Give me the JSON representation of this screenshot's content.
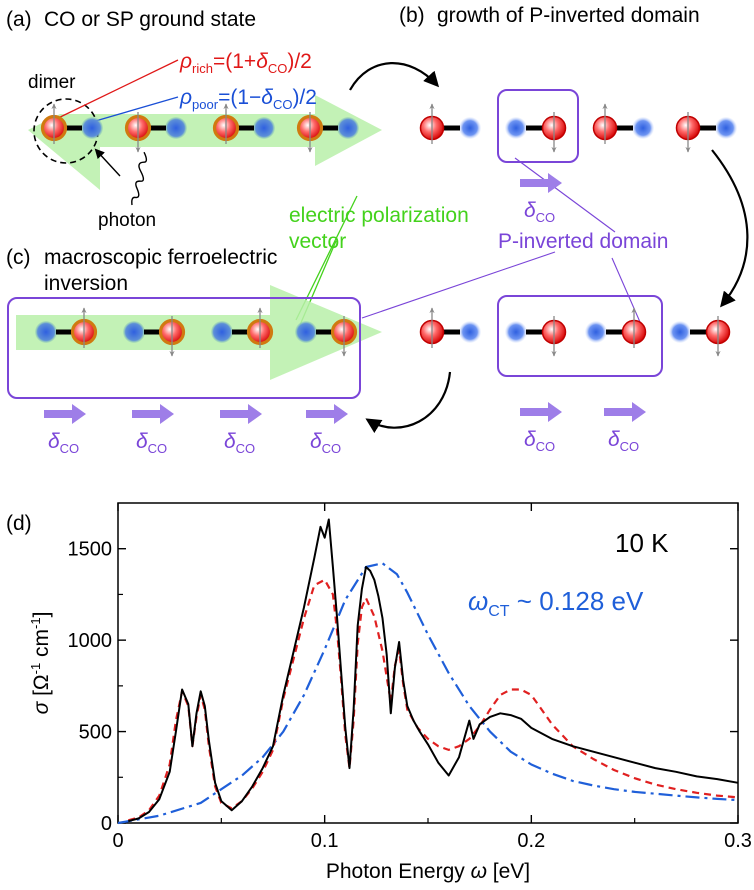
{
  "panels": {
    "a": {
      "tag": "(a)",
      "title": "CO or SP ground state",
      "dimer": "dimer",
      "photon": "photon",
      "rho_rich": "ρ",
      "rho_rich_sub": "rich",
      "rho_rich_eq": "=(1+",
      "rho_rich_delta": "δ",
      "rho_rich_delta_sub": "CO",
      "rho_rich_tail": ")/2",
      "rho_poor": "ρ",
      "rho_poor_sub": "poor",
      "rho_poor_eq": "=(1−",
      "rho_poor_delta": "δ",
      "rho_poor_delta_sub": "CO",
      "rho_poor_tail": ")/2"
    },
    "b": {
      "tag": "(b)",
      "title": "growth of P-inverted domain"
    },
    "c": {
      "tag": "(c)",
      "title_line1": "macroscopic ferroelectric",
      "title_line2": "inversion"
    },
    "d": {
      "tag": "(d)"
    }
  },
  "labels": {
    "polarization_line1": "electric polarization",
    "polarization_line2": "vector",
    "p_inverted_domain": "P-inverted domain",
    "delta": "δ",
    "delta_sub": "CO"
  },
  "colors": {
    "rich": "#e01818",
    "poor": "#1a4fd6",
    "polarization": "#44d21c",
    "domain": "#7a45d8",
    "arrow_purple": "#9e7ee8",
    "fit_red": "#e02020",
    "fit_blue": "#1f5fd9"
  },
  "chart_data": {
    "type": "line",
    "xlabel": "Photon Energy ω [eV]",
    "xlabel_main": "Photon Energy ",
    "xlabel_var": "ω",
    "xlabel_unit": " [eV]",
    "ylabel": "σ [Ω⁻¹ cm⁻¹]",
    "ylabel_var": "σ",
    "ylabel_unit": "[Ω",
    "ylabel_sup1": "-1",
    "ylabel_mid": " cm",
    "ylabel_sup2": "-1",
    "ylabel_end": "]",
    "xlim": [
      0,
      0.3
    ],
    "ylim": [
      0,
      1750
    ],
    "xticks": [
      "0",
      "0.1",
      "0.2",
      "0.3"
    ],
    "xtick_values": [
      0,
      0.1,
      0.2,
      0.3
    ],
    "yticks": [
      "0",
      "500",
      "1000",
      "1500"
    ],
    "ytick_values": [
      0,
      500,
      1000,
      1500
    ],
    "annotation_temp": "10 K",
    "annotation_omega": "ω",
    "annotation_omega_sub": "CT",
    "annotation_omega_val": " ~ 0.128 eV",
    "series": [
      {
        "style": "solid",
        "color": "#000000",
        "x": [
          0.005,
          0.01,
          0.015,
          0.02,
          0.025,
          0.028,
          0.031,
          0.034,
          0.036,
          0.038,
          0.04,
          0.042,
          0.044,
          0.047,
          0.05,
          0.055,
          0.06,
          0.065,
          0.07,
          0.075,
          0.08,
          0.085,
          0.09,
          0.095,
          0.098,
          0.1,
          0.102,
          0.104,
          0.106,
          0.108,
          0.11,
          0.112,
          0.114,
          0.116,
          0.118,
          0.12,
          0.122,
          0.124,
          0.126,
          0.128,
          0.13,
          0.132,
          0.134,
          0.136,
          0.138,
          0.14,
          0.143,
          0.146,
          0.15,
          0.155,
          0.16,
          0.165,
          0.168,
          0.17,
          0.172,
          0.175,
          0.18,
          0.185,
          0.19,
          0.195,
          0.2,
          0.21,
          0.22,
          0.23,
          0.24,
          0.25,
          0.26,
          0.27,
          0.28,
          0.29,
          0.3
        ],
        "y": [
          10,
          25,
          60,
          130,
          280,
          500,
          730,
          650,
          420,
          600,
          720,
          640,
          450,
          220,
          120,
          70,
          120,
          200,
          300,
          420,
          700,
          940,
          1180,
          1450,
          1620,
          1560,
          1660,
          1400,
          1120,
          820,
          520,
          300,
          620,
          1080,
          1280,
          1400,
          1380,
          1330,
          1240,
          1120,
          920,
          600,
          850,
          990,
          780,
          640,
          560,
          500,
          430,
          330,
          260,
          360,
          480,
          560,
          460,
          540,
          580,
          600,
          590,
          570,
          520,
          460,
          420,
          390,
          360,
          330,
          300,
          280,
          255,
          240,
          220
        ]
      },
      {
        "style": "dashed",
        "color": "#e02020",
        "x": [
          0.005,
          0.01,
          0.015,
          0.02,
          0.025,
          0.028,
          0.031,
          0.034,
          0.036,
          0.038,
          0.04,
          0.042,
          0.044,
          0.047,
          0.05,
          0.055,
          0.06,
          0.065,
          0.07,
          0.075,
          0.08,
          0.085,
          0.09,
          0.095,
          0.1,
          0.104,
          0.106,
          0.108,
          0.11,
          0.112,
          0.114,
          0.116,
          0.118,
          0.12,
          0.124,
          0.128,
          0.132,
          0.134,
          0.136,
          0.138,
          0.14,
          0.145,
          0.15,
          0.155,
          0.16,
          0.165,
          0.17,
          0.175,
          0.18,
          0.185,
          0.19,
          0.195,
          0.2,
          0.205,
          0.21,
          0.22,
          0.23,
          0.24,
          0.25,
          0.26,
          0.27,
          0.28,
          0.29,
          0.3
        ],
        "y": [
          15,
          30,
          70,
          150,
          320,
          560,
          720,
          640,
          420,
          580,
          700,
          620,
          420,
          200,
          110,
          80,
          120,
          190,
          280,
          400,
          680,
          900,
          1120,
          1300,
          1330,
          1250,
          1050,
          780,
          480,
          300,
          560,
          980,
          1180,
          1230,
          1130,
          940,
          660,
          860,
          950,
          760,
          620,
          520,
          460,
          420,
          400,
          420,
          460,
          530,
          620,
          700,
          730,
          730,
          700,
          620,
          540,
          420,
          350,
          290,
          245,
          210,
          185,
          165,
          150,
          140
        ]
      },
      {
        "style": "dashdot",
        "color": "#1f5fd9",
        "x": [
          0.0,
          0.02,
          0.04,
          0.06,
          0.07,
          0.08,
          0.09,
          0.1,
          0.11,
          0.12,
          0.128,
          0.135,
          0.14,
          0.15,
          0.16,
          0.17,
          0.18,
          0.19,
          0.2,
          0.21,
          0.22,
          0.23,
          0.24,
          0.25,
          0.26,
          0.27,
          0.28,
          0.29,
          0.3
        ],
        "y": [
          0,
          40,
          110,
          260,
          360,
          500,
          700,
          950,
          1220,
          1400,
          1420,
          1360,
          1260,
          1030,
          820,
          640,
          500,
          390,
          320,
          270,
          230,
          205,
          185,
          170,
          160,
          150,
          140,
          132,
          125
        ]
      }
    ]
  }
}
